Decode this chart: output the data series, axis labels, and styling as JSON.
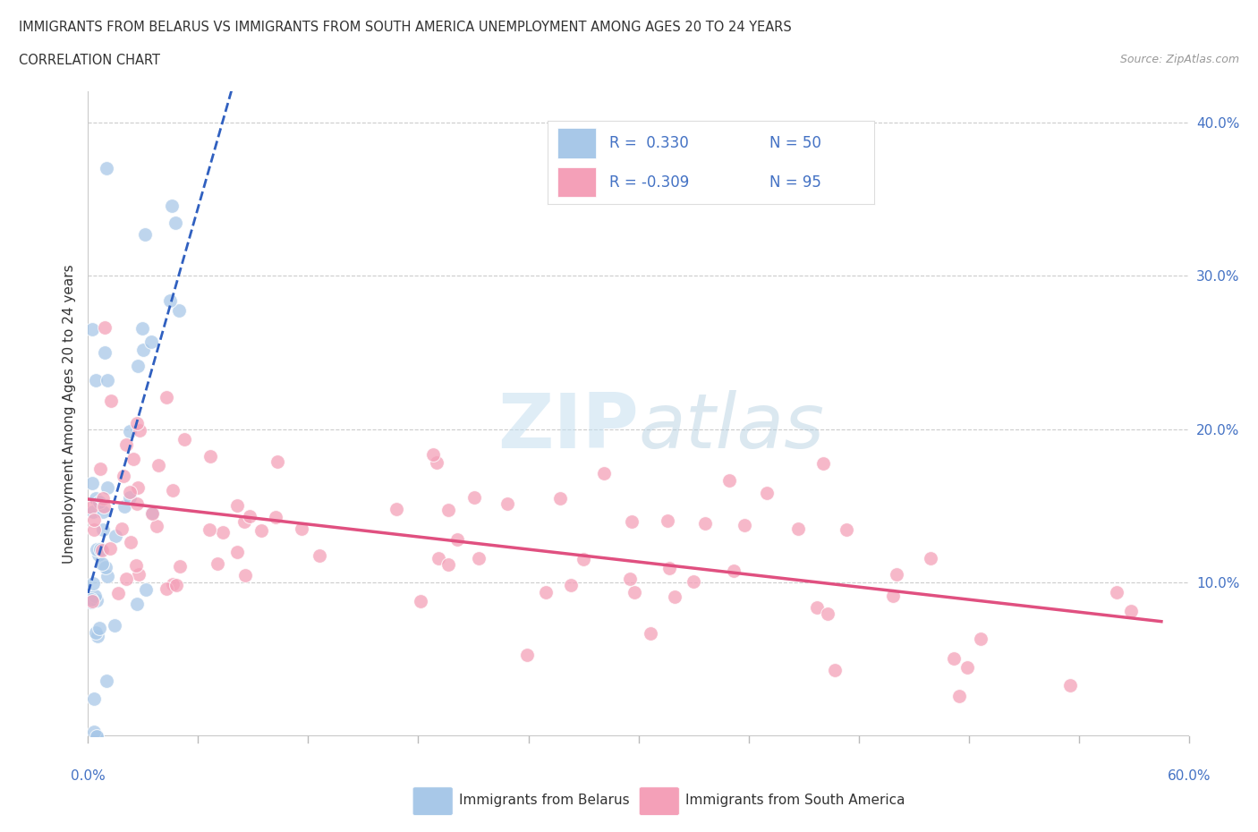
{
  "title_line1": "IMMIGRANTS FROM BELARUS VS IMMIGRANTS FROM SOUTH AMERICA UNEMPLOYMENT AMONG AGES 20 TO 24 YEARS",
  "title_line2": "CORRELATION CHART",
  "source_text": "Source: ZipAtlas.com",
  "ylabel": "Unemployment Among Ages 20 to 24 years",
  "legend_r1": "R =  0.330",
  "legend_n1": "N = 50",
  "legend_r2": "R = -0.309",
  "legend_n2": "N = 95",
  "legend_label1": "Immigrants from Belarus",
  "legend_label2": "Immigrants from South America",
  "xmin": 0.0,
  "xmax": 0.6,
  "ymin": 0.0,
  "ymax": 0.42,
  "yticks": [
    0.0,
    0.1,
    0.2,
    0.3,
    0.4
  ],
  "ytick_labels": [
    "",
    "10.0%",
    "20.0%",
    "30.0%",
    "40.0%"
  ],
  "color_blue": "#a8c8e8",
  "color_pink": "#f4a0b8",
  "color_blue_line": "#3060c0",
  "color_pink_line": "#e05080",
  "background_color": "#ffffff",
  "grid_color": "#cccccc",
  "watermark_zip_color": "#c8dff0",
  "watermark_atlas_color": "#b8d4e8",
  "title_color": "#333333",
  "axis_label_color": "#4472c4",
  "legend_text_color": "#4472c4"
}
